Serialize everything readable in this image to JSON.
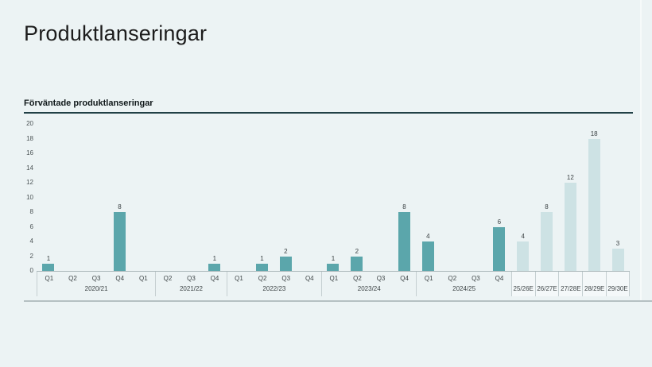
{
  "window": {
    "title": "Produktlanseringar"
  },
  "chart": {
    "subtitle": "Förväntade produktlanseringar"
  },
  "chart_data": {
    "type": "bar",
    "title": "Förväntade produktlanseringar",
    "xlabel": "",
    "ylabel": "",
    "ylim": [
      0,
      20
    ],
    "y_ticks": [
      20,
      18,
      16,
      14,
      12,
      10,
      8,
      6,
      4,
      2,
      0
    ],
    "grid": false,
    "legend": "none",
    "groups": [
      {
        "label": "2020/21",
        "type": "actual",
        "points": [
          {
            "q": "Q1",
            "v": 1
          },
          {
            "q": "Q2",
            "v": 0
          },
          {
            "q": "Q3",
            "v": 0
          },
          {
            "q": "Q4",
            "v": 8
          },
          {
            "q": "Q1",
            "v": 0
          }
        ]
      },
      {
        "label": "2021/22",
        "type": "actual",
        "points": [
          {
            "q": "Q2",
            "v": 0
          },
          {
            "q": "Q3",
            "v": 0
          },
          {
            "q": "Q4",
            "v": 1
          }
        ]
      },
      {
        "label": "2022/23",
        "type": "actual",
        "points": [
          {
            "q": "Q1",
            "v": 0
          },
          {
            "q": "Q2",
            "v": 1
          },
          {
            "q": "Q3",
            "v": 2
          },
          {
            "q": "Q4",
            "v": 0
          }
        ]
      },
      {
        "label": "2023/24",
        "type": "actual",
        "points": [
          {
            "q": "Q1",
            "v": 1
          },
          {
            "q": "Q2",
            "v": 2
          },
          {
            "q": "Q3",
            "v": 0
          },
          {
            "q": "Q4",
            "v": 8
          }
        ]
      },
      {
        "label": "2024/25",
        "type": "actual",
        "points": [
          {
            "q": "Q1",
            "v": 4
          },
          {
            "q": "Q2",
            "v": 0
          },
          {
            "q": "Q3",
            "v": 0
          },
          {
            "q": "Q4",
            "v": 6
          }
        ]
      },
      {
        "label": "25/26E",
        "type": "forecast",
        "points": [
          {
            "q": "",
            "v": 4
          }
        ]
      },
      {
        "label": "26/27E",
        "type": "forecast",
        "points": [
          {
            "q": "",
            "v": 8
          }
        ]
      },
      {
        "label": "27/28E",
        "type": "forecast",
        "points": [
          {
            "q": "",
            "v": 12
          }
        ]
      },
      {
        "label": "28/29E",
        "type": "forecast",
        "points": [
          {
            "q": "",
            "v": 18
          }
        ]
      },
      {
        "label": "29/30E",
        "type": "forecast",
        "points": [
          {
            "q": "",
            "v": 3
          }
        ]
      }
    ],
    "colors": {
      "actual": "#5BA6AB",
      "forecast": "#CDE2E4",
      "background": "#ECF3F4",
      "axis_line": "#A9B6B8",
      "separator": "#C5CFD1",
      "header_rule": "#214046"
    }
  }
}
